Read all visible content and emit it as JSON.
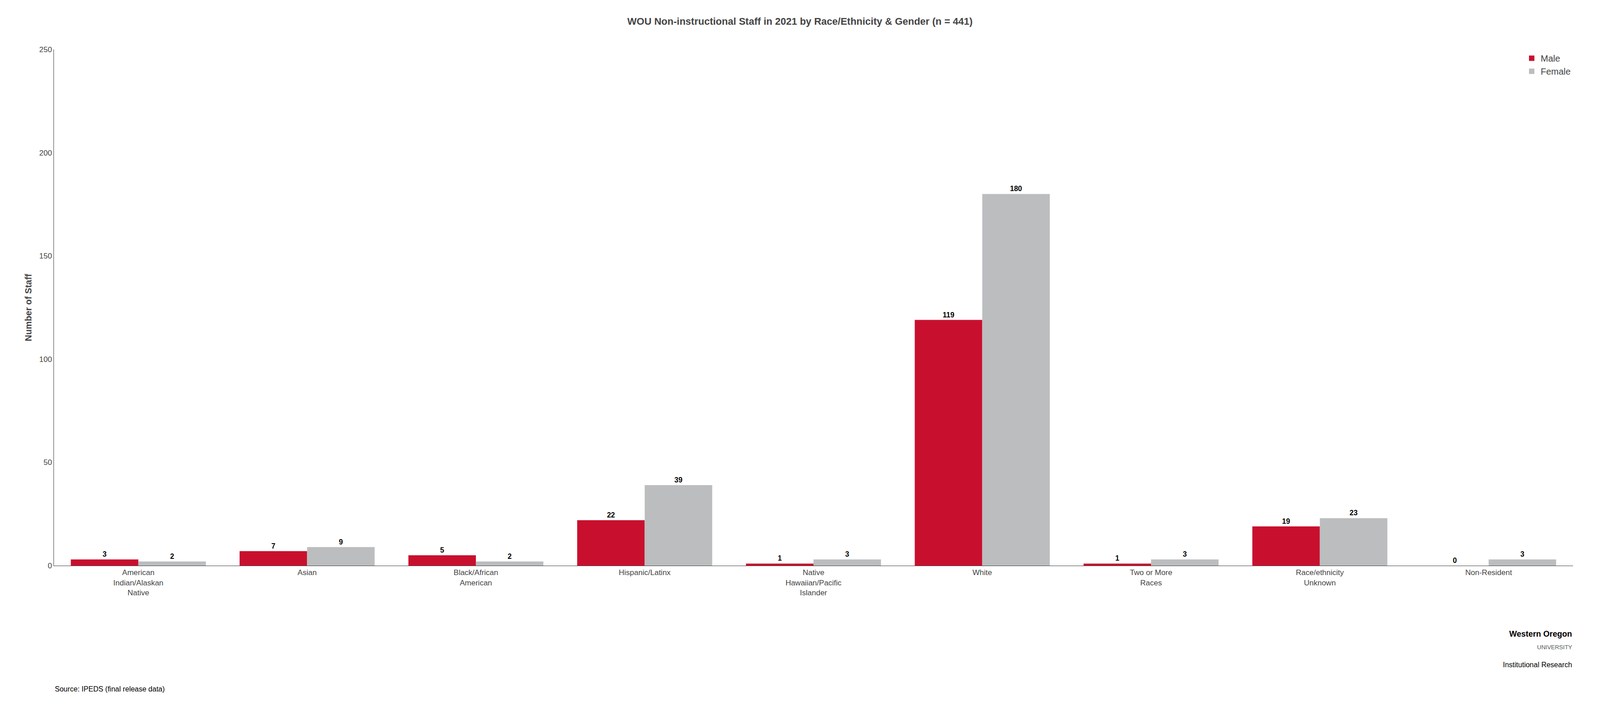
{
  "chart_data": {
    "type": "bar",
    "title": "WOU Non-instructional Staff in 2021 by Race/Ethnicity & Gender (n = 441)",
    "ylabel": "Number of Staff",
    "categories": [
      "American\nIndian/Alaskan\nNative",
      "Asian",
      "Black/African\nAmerican",
      "Hispanic/Latinx",
      "Native\nHawaiian/Pacific\nIslander",
      "White",
      "Two or More\nRaces",
      "Race/ethnicity\nUnknown",
      "Non-Resident"
    ],
    "series": [
      {
        "name": "Male",
        "color": "#C8102E",
        "values": [
          3,
          7,
          5,
          22,
          1,
          119,
          1,
          19,
          0
        ]
      },
      {
        "name": "Female",
        "color": "#BBBDBF",
        "values": [
          2,
          9,
          2,
          39,
          3,
          180,
          3,
          23,
          3
        ]
      }
    ],
    "ylim": [
      0,
      250
    ],
    "yticks": [
      0,
      50,
      100,
      150,
      200,
      250
    ],
    "data_labels": true,
    "legend": "upper right",
    "grid": false,
    "annotations": [
      "Source: IPEDS (final release data)",
      "Western Oregon",
      "UNIVERSITY",
      "Institutional Research"
    ]
  }
}
